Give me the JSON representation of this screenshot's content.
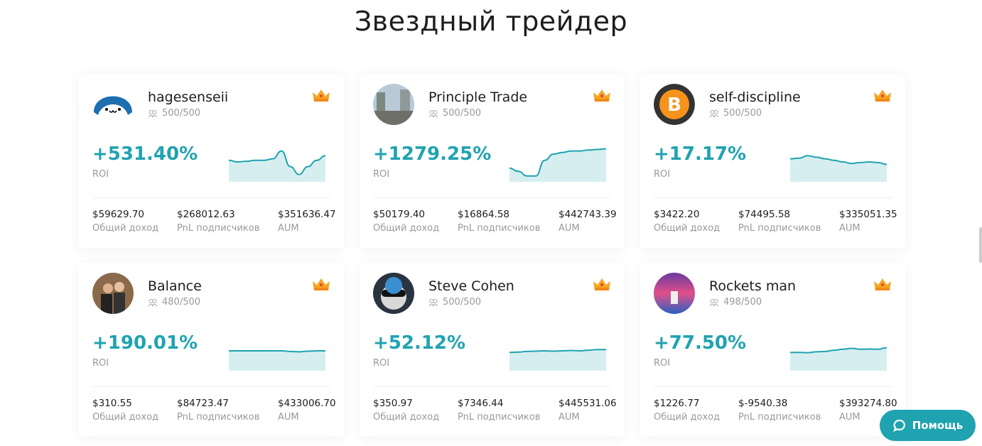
{
  "page_title": "Звездный трейдер",
  "labels": {
    "roi": "ROI",
    "income": "Общий доход",
    "pnl": "PnL подписчиков",
    "aum": "AUM"
  },
  "accent": "#1fa3b0",
  "help_button": "Помощь",
  "traders": [
    {
      "name": "hagesenseii",
      "subs": "500/500",
      "roi": "+531.40%",
      "income": "$59629.70",
      "pnl": "$268012.63",
      "aum": "$351636.47",
      "avatar": "cartoon",
      "spark": [
        0.55,
        0.5,
        0.52,
        0.55,
        0.55,
        0.6,
        0.85,
        0.35,
        0.1,
        0.35,
        0.55,
        0.7
      ]
    },
    {
      "name": "Principle Trade",
      "subs": "500/500",
      "roi": "+1279.25%",
      "income": "$50179.40",
      "pnl": "$16864.58",
      "aum": "$442743.39",
      "avatar": "city",
      "spark": [
        0.3,
        0.2,
        0.05,
        0.05,
        0.55,
        0.75,
        0.8,
        0.85,
        0.85,
        0.88,
        0.9,
        0.92
      ]
    },
    {
      "name": "self-discipline",
      "subs": "500/500",
      "roi": "+17.17%",
      "income": "$3422.20",
      "pnl": "$74495.58",
      "aum": "$335051.35",
      "avatar": "bitcoin",
      "spark": [
        0.6,
        0.62,
        0.7,
        0.65,
        0.6,
        0.55,
        0.5,
        0.45,
        0.48,
        0.5,
        0.48,
        0.42
      ]
    },
    {
      "name": "Balance",
      "subs": "480/500",
      "roi": "+190.01%",
      "income": "$310.55",
      "pnl": "$84723.47",
      "aum": "$433006.70",
      "avatar": "people",
      "spark": [
        0.5,
        0.5,
        0.5,
        0.5,
        0.5,
        0.5,
        0.5,
        0.48,
        0.47,
        0.49,
        0.5,
        0.5
      ]
    },
    {
      "name": "Steve Cohen",
      "subs": "500/500",
      "roi": "+52.12%",
      "income": "$350.97",
      "pnl": "$7346.44",
      "aum": "$445531.06",
      "avatar": "cat",
      "spark": [
        0.45,
        0.46,
        0.48,
        0.49,
        0.5,
        0.49,
        0.5,
        0.51,
        0.5,
        0.52,
        0.54,
        0.54
      ]
    },
    {
      "name": "Rockets man",
      "subs": "498/500",
      "roi": "+77.50%",
      "income": "$1226.77",
      "pnl": "$-9540.38",
      "aum": "$393274.80",
      "avatar": "space",
      "spark": [
        0.45,
        0.45,
        0.44,
        0.47,
        0.48,
        0.52,
        0.55,
        0.58,
        0.55,
        0.56,
        0.55,
        0.6
      ]
    }
  ]
}
